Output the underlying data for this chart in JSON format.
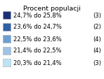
{
  "title": "Procent populacji",
  "entries": [
    {
      "label": "24,7% do 25,8%",
      "count": "(3)",
      "color": "#1a2f7a"
    },
    {
      "label": "23,6% do 24,7%",
      "count": "(2)",
      "color": "#2f5fa8"
    },
    {
      "label": "22,5% do 23,6%",
      "count": "(4)",
      "color": "#6b9fd4"
    },
    {
      "label": "21,4% do 22,5%",
      "count": "(4)",
      "color": "#9dc3e6"
    },
    {
      "label": "20,3% do 21,4%",
      "count": "(3)",
      "color": "#bde3f5"
    }
  ],
  "bg_color": "#ffffff",
  "title_fontsize": 6.8,
  "label_fontsize": 6.0,
  "figsize": [
    1.48,
    1.14
  ],
  "dpi": 100
}
